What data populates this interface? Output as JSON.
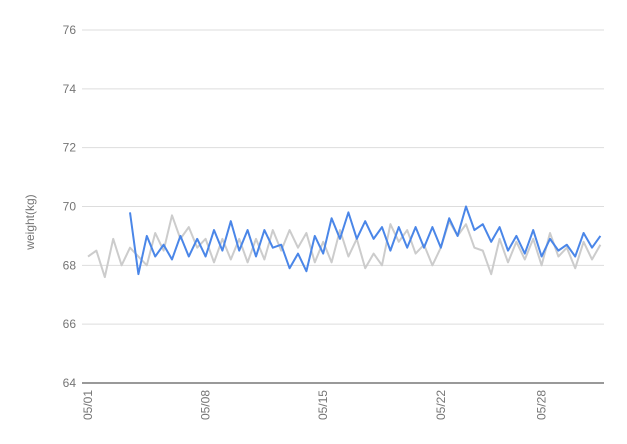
{
  "chart_data": {
    "type": "line",
    "y_label": "weight(kg)",
    "categories": [
      "05/01",
      null,
      null,
      null,
      null,
      null,
      null,
      null,
      null,
      null,
      null,
      null,
      null,
      null,
      "05/08",
      null,
      null,
      null,
      null,
      null,
      null,
      null,
      null,
      null,
      null,
      null,
      null,
      null,
      "05/15",
      null,
      null,
      null,
      null,
      null,
      null,
      null,
      null,
      null,
      null,
      null,
      null,
      null,
      "05/22",
      null,
      null,
      null,
      null,
      null,
      null,
      null,
      null,
      null,
      null,
      null,
      "05/28",
      null,
      null,
      null,
      null,
      null,
      null,
      null
    ],
    "series": [
      {
        "color": "#cccccc",
        "values": [
          68.3,
          68.5,
          67.6,
          68.9,
          68.0,
          68.6,
          68.3,
          68.0,
          69.1,
          68.5,
          69.7,
          68.9,
          69.3,
          68.6,
          68.9,
          68.1,
          68.9,
          68.2,
          68.9,
          68.1,
          68.9,
          68.2,
          69.2,
          68.5,
          69.2,
          68.6,
          69.1,
          68.1,
          68.8,
          68.1,
          69.2,
          68.3,
          68.9,
          67.9,
          68.4,
          68.0,
          69.4,
          68.8,
          69.2,
          68.4,
          68.7,
          68.0,
          68.6,
          69.5,
          69.0,
          69.4,
          68.6,
          68.5,
          67.7,
          68.9,
          68.1,
          68.8,
          68.2,
          68.9,
          68.0,
          69.1,
          68.3,
          68.6,
          67.9,
          68.8,
          68.2,
          68.7
        ]
      },
      {
        "color": "#4a86e8",
        "values": [
          null,
          null,
          null,
          null,
          null,
          69.8,
          67.7,
          69.0,
          68.3,
          68.7,
          68.2,
          69.0,
          68.3,
          68.9,
          68.3,
          69.2,
          68.5,
          69.5,
          68.5,
          69.2,
          68.3,
          69.2,
          68.6,
          68.7,
          67.9,
          68.4,
          67.8,
          69.0,
          68.4,
          69.6,
          68.9,
          69.8,
          68.9,
          69.5,
          68.9,
          69.3,
          68.5,
          69.3,
          68.6,
          69.3,
          68.6,
          69.3,
          68.6,
          69.6,
          69.0,
          70.0,
          69.2,
          69.4,
          68.8,
          69.3,
          68.5,
          69.0,
          68.4,
          69.2,
          68.3,
          68.9,
          68.5,
          68.7,
          68.3,
          69.1,
          68.6,
          69.0
        ]
      }
    ],
    "ylim": [
      64,
      76
    ],
    "yticks": [
      64,
      66,
      68,
      70,
      72,
      74,
      76
    ],
    "grid": true
  }
}
